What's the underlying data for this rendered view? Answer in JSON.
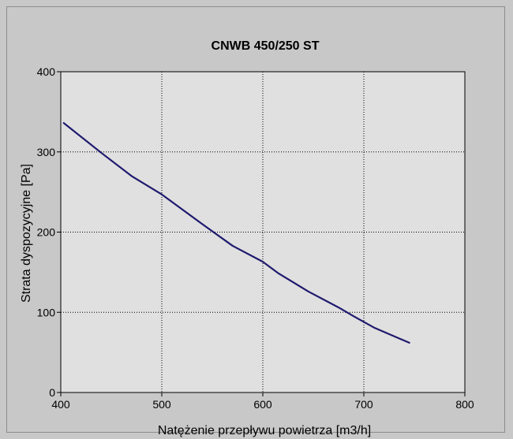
{
  "chart_data": {
    "type": "line",
    "title": "CNWB 450/250 ST",
    "xlabel": "Natężenie przepływu powietrza [m3/h]",
    "ylabel": "Strata dyspozycyjne [Pa]",
    "xlim": [
      400,
      800
    ],
    "ylim": [
      0,
      400
    ],
    "x_ticks": [
      400,
      500,
      600,
      700,
      800
    ],
    "y_ticks": [
      0,
      100,
      200,
      300,
      400
    ],
    "grid": true,
    "legend": "none",
    "colors": {
      "plot_bg": "#e0e0e0",
      "frame_bg": "#c8c8c8",
      "line": "#1f1a6e",
      "grid": "#000000"
    },
    "series": [
      {
        "x": [
          403,
          440,
          470,
          500,
          540,
          570,
          600,
          615,
          645,
          675,
          690,
          710,
          745
        ],
        "y": [
          336,
          299,
          270,
          247,
          210,
          183,
          163,
          149,
          126,
          106,
          95,
          81,
          62
        ]
      }
    ]
  }
}
